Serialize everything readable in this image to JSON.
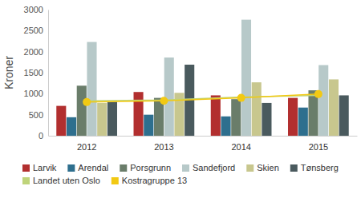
{
  "chart_data": {
    "type": "bar",
    "y_label": "Kroner",
    "categories": [
      "2012",
      "2013",
      "2014",
      "2015"
    ],
    "ylim": [
      0,
      3000
    ],
    "yticks": [
      0,
      500,
      1000,
      1500,
      2000,
      2500,
      3000
    ],
    "series": [
      {
        "name": "Larvik",
        "color": "#b22f2f",
        "values": [
          710,
          1040,
          960,
          900
        ]
      },
      {
        "name": "Arendal",
        "color": "#2e6f8e",
        "values": [
          440,
          500,
          460,
          670
        ]
      },
      {
        "name": "Porsgrunn",
        "color": "#6a7d6a",
        "values": [
          1190,
          900,
          870,
          1080
        ]
      },
      {
        "name": "Sandefjord",
        "color": "#b7c9c9",
        "values": [
          2230,
          1860,
          2760,
          1680
        ]
      },
      {
        "name": "Skien",
        "color": "#c8c78e",
        "values": [
          780,
          1020,
          1270,
          1340
        ]
      },
      {
        "name": "Tønsberg",
        "color": "#4a5a5e",
        "values": [
          820,
          1690,
          780,
          960
        ]
      },
      {
        "name": "Landet uten Oslo",
        "color": "#bfd47a",
        "type": "line",
        "values": [
          830,
          850,
          920,
          960
        ]
      },
      {
        "name": "Kostragruppe 13",
        "color": "#f2c913",
        "type": "line",
        "marker": "circle",
        "values": [
          800,
          830,
          900,
          990
        ]
      }
    ]
  }
}
